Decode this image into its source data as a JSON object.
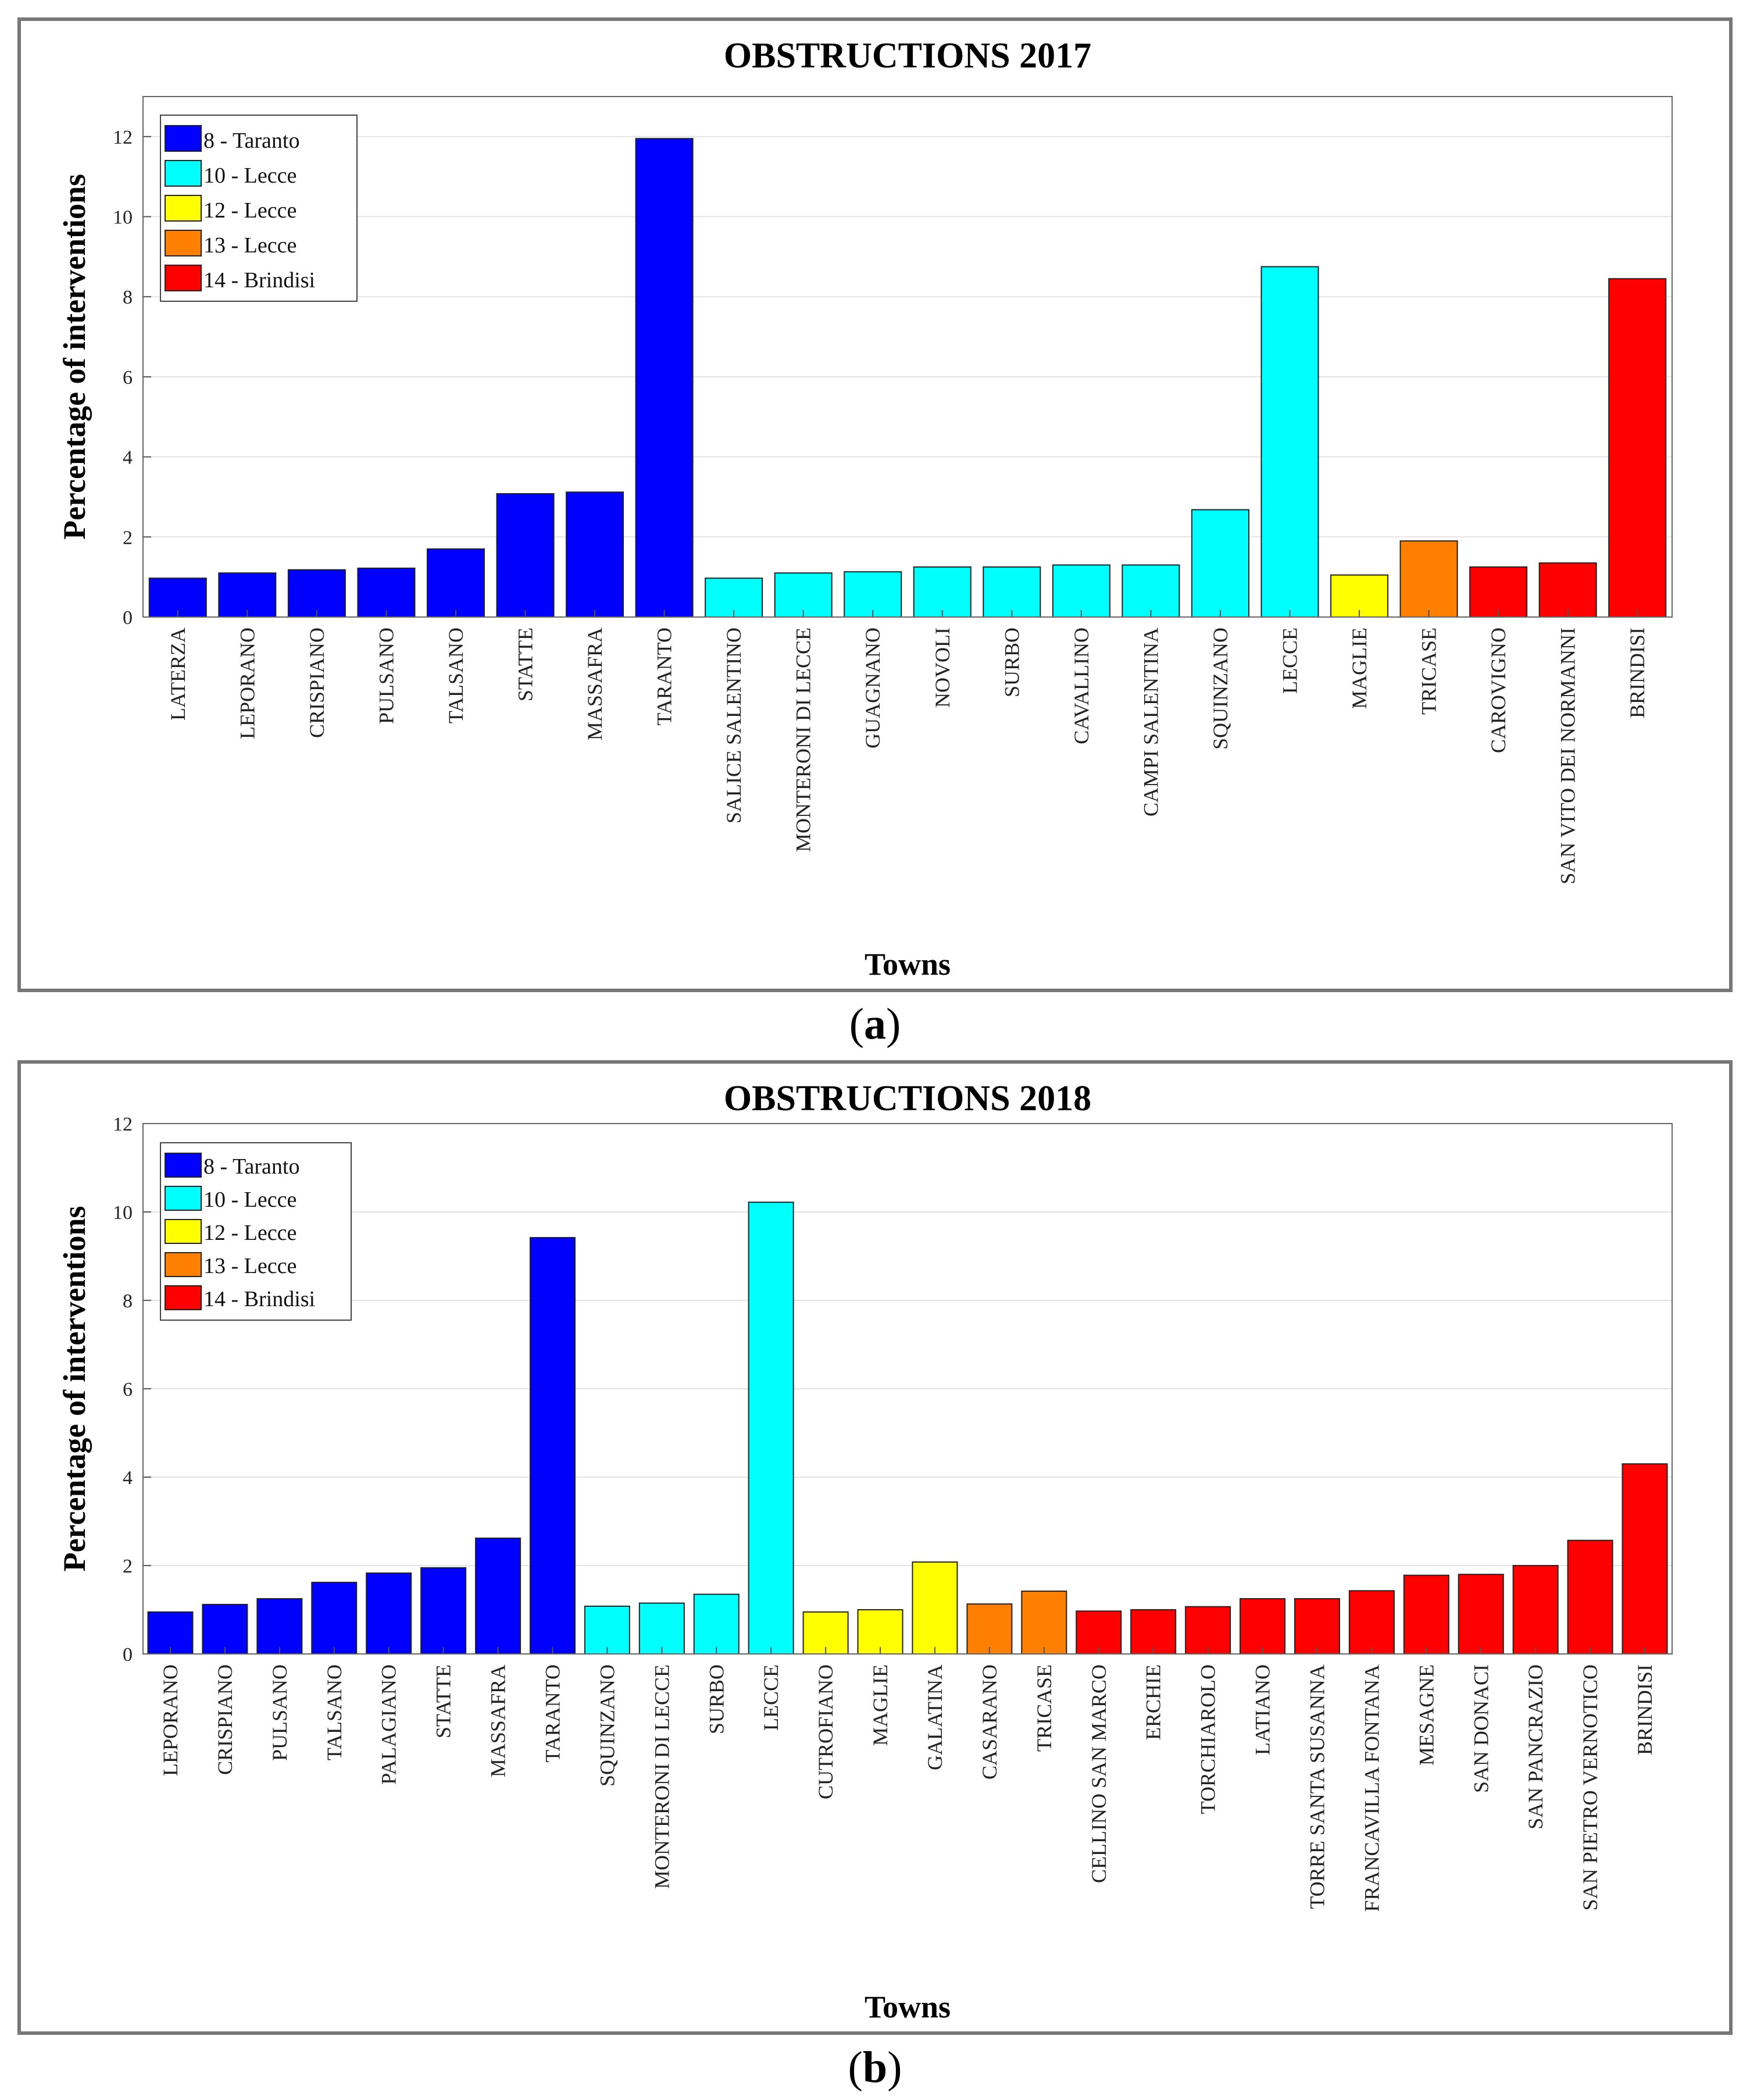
{
  "chart_data": [
    {
      "type": "bar",
      "title": "OBSTRUCTIONS 2017",
      "xlabel": "Towns",
      "ylabel": "Percentage of interventions",
      "ylim": [
        0,
        13
      ],
      "yticks": [
        0,
        2,
        4,
        6,
        8,
        10,
        12
      ],
      "grid": true,
      "legend_position": "top-left",
      "legend": [
        {
          "label": "8 - Taranto",
          "color": "#0000ff"
        },
        {
          "label": "10 - Lecce",
          "color": "#00ffff"
        },
        {
          "label": "12 - Lecce",
          "color": "#ffff00"
        },
        {
          "label": "13 - Lecce",
          "color": "#ff8000"
        },
        {
          "label": "14 - Brindisi",
          "color": "#ff0000"
        }
      ],
      "categories": [
        "LATERZA",
        "LEPORANO",
        "CRISPIANO",
        "PULSANO",
        "TALSANO",
        "STATTE",
        "MASSAFRA",
        "TARANTO",
        "SALICE SALENTINO",
        "MONTERONI DI LECCE",
        "GUAGNANO",
        "NOVOLI",
        "SURBO",
        "CAVALLINO",
        "CAMPI SALENTINA",
        "SQUINZANO",
        "LECCE",
        "MAGLIE",
        "TRICASE",
        "CAROVIGNO",
        "SAN VITO DEI NORMANNI",
        "BRINDISI"
      ],
      "values": [
        0.97,
        1.1,
        1.18,
        1.22,
        1.7,
        3.08,
        3.12,
        11.95,
        0.97,
        1.1,
        1.13,
        1.25,
        1.25,
        1.3,
        1.3,
        2.68,
        8.75,
        1.05,
        1.9,
        1.25,
        1.35,
        8.45
      ],
      "groups": [
        0,
        0,
        0,
        0,
        0,
        0,
        0,
        0,
        1,
        1,
        1,
        1,
        1,
        1,
        1,
        1,
        1,
        2,
        3,
        4,
        4,
        4
      ]
    },
    {
      "type": "bar",
      "title": "OBSTRUCTIONS 2018",
      "xlabel": "Towns",
      "ylabel": "Percentage of interventions",
      "ylim": [
        0,
        12
      ],
      "yticks": [
        0,
        2,
        4,
        6,
        8,
        10,
        12
      ],
      "grid": true,
      "legend_position": "top-left",
      "legend": [
        {
          "label": "8 - Taranto",
          "color": "#0000ff"
        },
        {
          "label": "10 - Lecce",
          "color": "#00ffff"
        },
        {
          "label": "12 - Lecce",
          "color": "#ffff00"
        },
        {
          "label": "13 - Lecce",
          "color": "#ff8000"
        },
        {
          "label": "14 - Brindisi",
          "color": "#ff0000"
        }
      ],
      "categories": [
        "LEPORANO",
        "CRISPIANO",
        "PULSANO",
        "TALSANO",
        "PALAGIANO",
        "STATTE",
        "MASSAFRA",
        "TARANTO",
        "SQUINZANO",
        "MONTERONI DI LECCE",
        "SURBO",
        "LECCE",
        "CUTROFIANO",
        "MAGLIE",
        "GALATINA",
        "CASARANO",
        "TRICASE",
        "CELLINO SAN MARCO",
        "ERCHIE",
        "TORCHIAROLO",
        "LATIANO",
        "TORRE SANTA SUSANNA",
        "FRANCAVILLA FONTANA",
        "MESAGNE",
        "SAN DONACI",
        "SAN PANCRAZIO",
        "SAN PIETRO VERNOTICO",
        "BRINDISI"
      ],
      "values": [
        0.95,
        1.12,
        1.25,
        1.62,
        1.83,
        1.95,
        2.62,
        9.42,
        1.08,
        1.15,
        1.35,
        10.22,
        0.95,
        1.0,
        2.08,
        1.13,
        1.42,
        0.97,
        1.0,
        1.07,
        1.25,
        1.25,
        1.43,
        1.78,
        1.8,
        2.0,
        2.57,
        4.3
      ],
      "groups": [
        0,
        0,
        0,
        0,
        0,
        0,
        0,
        0,
        1,
        1,
        1,
        1,
        2,
        2,
        2,
        3,
        3,
        4,
        4,
        4,
        4,
        4,
        4,
        4,
        4,
        4,
        4,
        4
      ]
    }
  ],
  "captions": {
    "a": "a",
    "b": "b"
  }
}
